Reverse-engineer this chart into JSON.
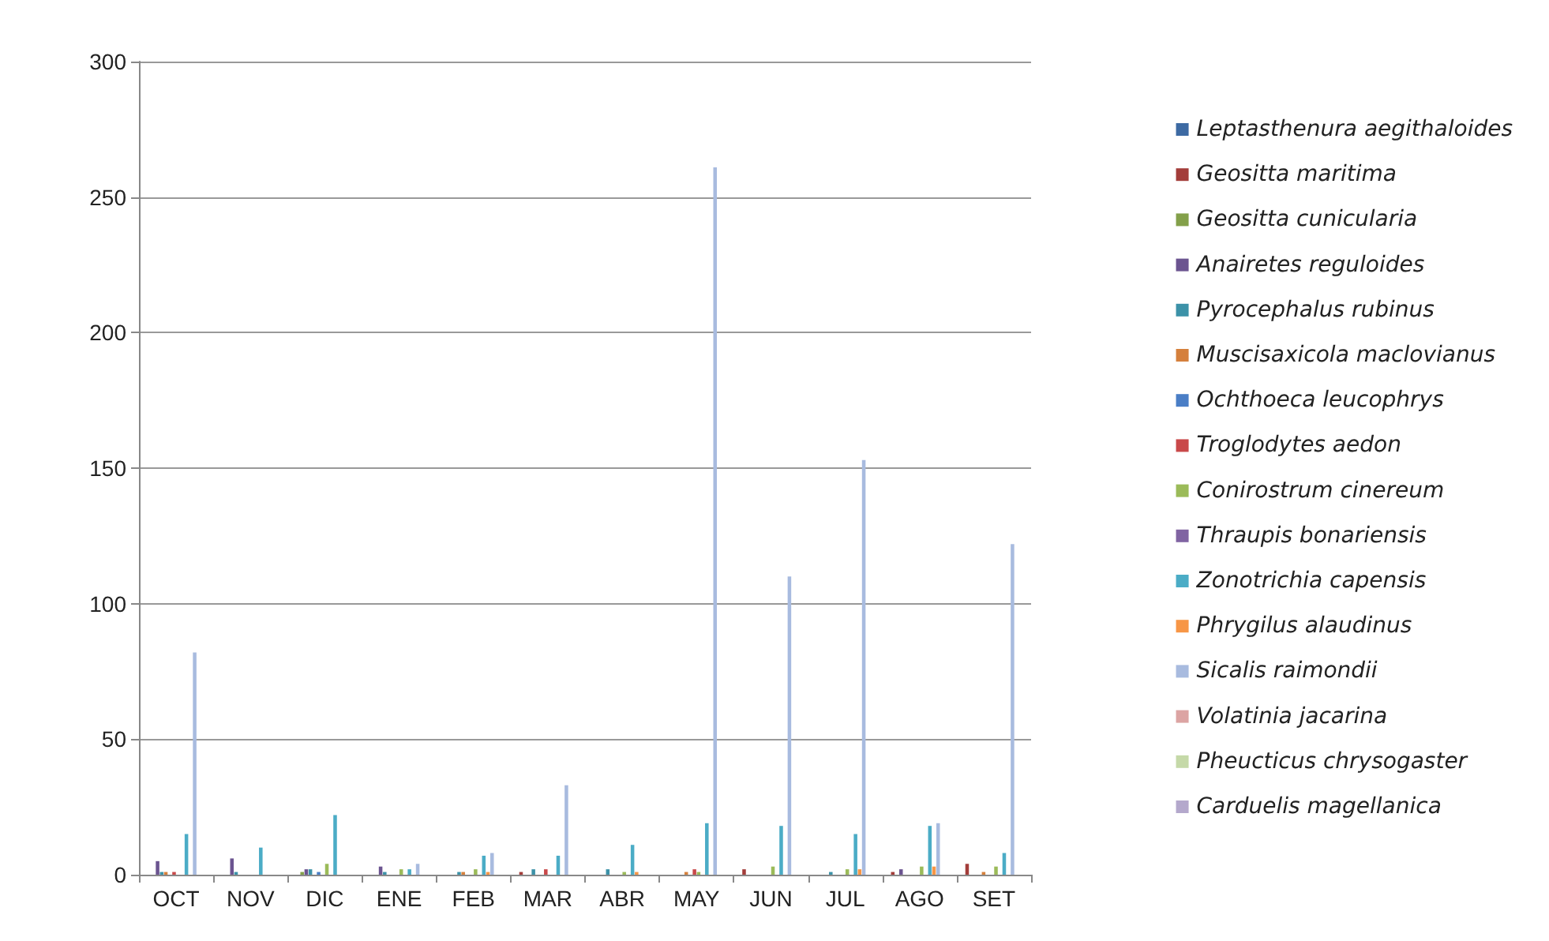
{
  "chart_data": {
    "type": "bar",
    "categories": [
      "OCT",
      "NOV",
      "DIC",
      "ENE",
      "FEB",
      "MAR",
      "ABR",
      "MAY",
      "JUN",
      "JUL",
      "AGO",
      "SET"
    ],
    "series": [
      {
        "name": "Leptasthenura aegithaloides",
        "color": "#3d6aa3",
        "values": [
          0,
          0,
          0,
          0,
          0,
          0,
          0,
          0,
          0,
          0,
          0,
          0
        ]
      },
      {
        "name": "Geositta maritima",
        "color": "#a33d3a",
        "values": [
          0,
          0,
          0,
          0,
          0,
          1,
          0,
          0,
          2,
          0,
          1,
          4
        ]
      },
      {
        "name": "Geositta cunicularia",
        "color": "#83a04a",
        "values": [
          0,
          0,
          1,
          0,
          0,
          0,
          0,
          0,
          0,
          0,
          0,
          0
        ]
      },
      {
        "name": "Anairetes reguloides",
        "color": "#6b5490",
        "values": [
          5,
          6,
          2,
          3,
          0,
          0,
          0,
          0,
          0,
          0,
          2,
          0
        ]
      },
      {
        "name": "Pyrocephalus rubinus",
        "color": "#3c92a8",
        "values": [
          1,
          1,
          2,
          1,
          1,
          2,
          2,
          0,
          0,
          1,
          0,
          0
        ]
      },
      {
        "name": "Muscisaxicola maclovianus",
        "color": "#d5803c",
        "values": [
          1,
          0,
          0,
          0,
          1,
          0,
          0,
          1,
          0,
          0,
          0,
          1
        ]
      },
      {
        "name": "Ochthoeca leucophrys",
        "color": "#4a7ec6",
        "values": [
          0,
          0,
          1,
          0,
          0,
          0,
          0,
          0,
          0,
          0,
          0,
          0
        ]
      },
      {
        "name": "Troglodytes aedon",
        "color": "#c9494a",
        "values": [
          1,
          0,
          0,
          0,
          0,
          2,
          0,
          2,
          0,
          0,
          0,
          0
        ]
      },
      {
        "name": "Conirostrum cinereum",
        "color": "#9bbb59",
        "values": [
          0,
          0,
          4,
          2,
          2,
          0,
          1,
          1,
          3,
          2,
          3,
          3
        ]
      },
      {
        "name": "Thraupis bonariensis",
        "color": "#8064a2",
        "values": [
          0,
          0,
          0,
          0,
          0,
          0,
          0,
          0,
          0,
          0,
          0,
          0
        ]
      },
      {
        "name": "Zonotrichia capensis",
        "color": "#4bacc6",
        "values": [
          15,
          10,
          22,
          2,
          7,
          7,
          11,
          19,
          18,
          15,
          18,
          8
        ]
      },
      {
        "name": "Phrygilus alaudinus",
        "color": "#f79646",
        "values": [
          0,
          0,
          0,
          0,
          1,
          0,
          1,
          0,
          0,
          2,
          3,
          0
        ]
      },
      {
        "name": "Sicalis raimondii",
        "color": "#a8bbdf",
        "values": [
          82,
          0,
          0,
          4,
          8,
          33,
          0,
          261,
          110,
          153,
          19,
          122
        ]
      },
      {
        "name": "Volatinia jacarina",
        "color": "#dca4a3",
        "values": [
          0,
          0,
          0,
          0,
          0,
          0,
          0,
          0,
          0,
          0,
          0,
          0
        ]
      },
      {
        "name": "Pheucticus chrysogaster",
        "color": "#c5d9a8",
        "values": [
          0,
          0,
          0,
          0,
          0,
          0,
          0,
          0,
          0,
          0,
          0,
          0
        ]
      },
      {
        "name": "Carduelis magellanica",
        "color": "#b4a8cc",
        "values": [
          0,
          0,
          0,
          0,
          0,
          0,
          0,
          0,
          0,
          0,
          0,
          0
        ]
      }
    ],
    "ylim": [
      0,
      300
    ],
    "yticks": [
      0,
      50,
      100,
      150,
      200,
      250,
      300
    ],
    "grid": "y",
    "legend": "right"
  }
}
